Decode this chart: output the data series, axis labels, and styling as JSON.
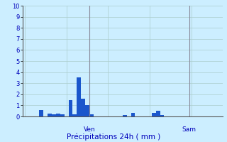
{
  "bar_values": [
    0,
    0,
    0,
    0,
    0.6,
    0,
    0.25,
    0.2,
    0.25,
    0.2,
    0,
    1.5,
    0.2,
    3.5,
    1.6,
    1.0,
    0.2,
    0,
    0,
    0,
    0,
    0,
    0,
    0,
    0.15,
    0,
    0.3,
    0,
    0,
    0,
    0,
    0.3,
    0.5,
    0.15,
    0,
    0,
    0,
    0,
    0,
    0,
    0,
    0,
    0,
    0,
    0,
    0,
    0,
    0
  ],
  "bar_color": "#1a56cc",
  "background_color": "#cceeff",
  "grid_color": "#aacccc",
  "ylabel_ticks": [
    0,
    1,
    2,
    3,
    4,
    5,
    6,
    7,
    8,
    9,
    10
  ],
  "ylim": [
    0,
    10
  ],
  "xlabel": "Précipitations 24h ( mm )",
  "xlabel_color": "#0000bb",
  "tick_label_color": "#0000bb",
  "vline_positions": [
    16,
    40
  ],
  "vline_labels": [
    "Ven",
    "Sam"
  ],
  "vline_label_color": "#0000bb",
  "vline_color": "#888899",
  "n_bars": 48
}
